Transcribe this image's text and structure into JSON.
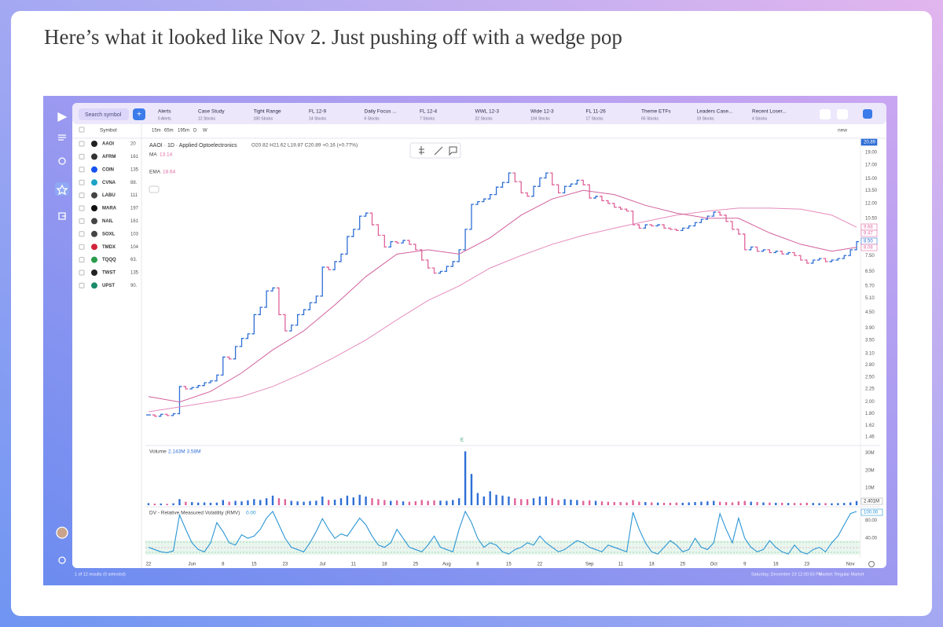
{
  "post": {
    "text": "Here’s what it looked like Nov 2. Just pushing off with a wedge pop"
  },
  "app": {
    "search": "Search symbol",
    "add": "+",
    "tabs": [
      {
        "title": "Alerts",
        "subtitle": "0 Alerts"
      },
      {
        "title": "Case Study",
        "subtitle": "12 Stocks"
      },
      {
        "title": "Tight Range",
        "subtitle": "180 Stocks"
      },
      {
        "title": "FL 12-9",
        "subtitle": "14 Stocks"
      },
      {
        "title": "Daily Focus ...",
        "subtitle": "6 Stocks"
      },
      {
        "title": "FL 12-4",
        "subtitle": "7 Stocks"
      },
      {
        "title": "WWL 12-3",
        "subtitle": "22 Stocks"
      },
      {
        "title": "Wide 12-3",
        "subtitle": "104 Stocks"
      },
      {
        "title": "FL 11-26",
        "subtitle": "17 Stocks"
      },
      {
        "title": "Theme ETFs",
        "subtitle": "65 Stocks"
      },
      {
        "title": "Leaders Case...",
        "subtitle": "19 Stocks"
      },
      {
        "title": "Recent Loser...",
        "subtitle": "4 Stocks"
      }
    ],
    "toolbar": [
      "15m",
      "65m",
      "195m",
      "D",
      "W"
    ],
    "layout_button": "new",
    "watchlist": {
      "header": "Symbol",
      "rows": [
        {
          "symbol": "AAOI",
          "price": "20"
        },
        {
          "symbol": "AFRM",
          "price": "161"
        },
        {
          "symbol": "COIN",
          "price": "135"
        },
        {
          "symbol": "CVNA",
          "price": "88."
        },
        {
          "symbol": "LABU",
          "price": "111"
        },
        {
          "symbol": "MARA",
          "price": "197"
        },
        {
          "symbol": "NAIL",
          "price": "161"
        },
        {
          "symbol": "SOXL",
          "price": "103"
        },
        {
          "symbol": "TMDX",
          "price": "104"
        },
        {
          "symbol": "TQQQ",
          "price": "63."
        },
        {
          "symbol": "TWST",
          "price": "135"
        },
        {
          "symbol": "UPST",
          "price": "90."
        }
      ]
    },
    "legend": {
      "title": "AAOI · 1D · Applied Optoelectronics",
      "ohlc": "O20.82 H21.62 L19.87 C20.89 +0.16 (+0.77%)",
      "ma_value": "13.14",
      "ema_value": "18.64"
    },
    "price_labels": [
      {
        "label": "20.89",
        "color": "#2f6fd6"
      },
      {
        "label": "9.68",
        "color": "#e06aa4"
      },
      {
        "label": "9.47",
        "color": "#e06aa4"
      },
      {
        "label": "8.50",
        "color": "#2f6fd6"
      },
      {
        "label": "8.08",
        "color": "#e06aa4"
      }
    ],
    "volume_legend": "Volume",
    "volume_values": "2.143M 3.58M",
    "volume_label": "2.401M",
    "rmv_legend": "DV - Relative Measured Volatility (RMV)",
    "rmv_value": "0.00",
    "rmv_label": "100.00",
    "earnings_marker": "E",
    "status": {
      "results": "1 of 12 results (0 selected)",
      "time": "Saturday, December 23 12:00:53 PM",
      "market": "Market: Regular Market"
    }
  },
  "chart_data": [
    {
      "type": "price",
      "log_scale": true,
      "xlim": [
        -0.5,
        114.5
      ],
      "ylim": [
        1.37,
        21.3
      ],
      "yticks": [
        {
          "value": 19,
          "label": "19.00"
        },
        {
          "value": 17,
          "label": "17.00"
        },
        {
          "value": 15,
          "label": "15.00"
        },
        {
          "value": 13.5,
          "label": "13.50"
        },
        {
          "value": 12,
          "label": "12.00"
        },
        {
          "value": 10.5,
          "label": "10.50"
        },
        {
          "value": 7.5,
          "label": "7.50"
        },
        {
          "value": 6.5,
          "label": "6.50"
        },
        {
          "value": 5.7,
          "label": "5.70"
        },
        {
          "value": 5.1,
          "label": "5.10"
        },
        {
          "value": 4.5,
          "label": "4.50"
        },
        {
          "value": 3.9,
          "label": "3.90"
        },
        {
          "value": 3.5,
          "label": "3.50"
        },
        {
          "value": 3.1,
          "label": "3.10"
        },
        {
          "value": 2.8,
          "label": "2.80"
        },
        {
          "value": 2.5,
          "label": "2.50"
        },
        {
          "value": 2.25,
          "label": "2.25"
        },
        {
          "value": 2,
          "label": "2.00"
        },
        {
          "value": 1.8,
          "label": "1.80"
        },
        {
          "value": 1.62,
          "label": "1.62"
        },
        {
          "value": 1.46,
          "label": "1.46"
        }
      ],
      "series": [
        {
          "color": "#2f6fd6",
          "down_color": "#e0649a",
          "values": [
            1.78,
            1.76,
            1.79,
            1.77,
            1.8,
            2.3,
            2.25,
            2.28,
            2.32,
            2.38,
            2.42,
            2.55,
            3.0,
            2.95,
            3.3,
            3.55,
            3.7,
            4.4,
            4.7,
            5.45,
            5.6,
            4.4,
            3.8,
            4.0,
            4.4,
            4.6,
            4.9,
            5.2,
            6.75,
            6.6,
            7.1,
            7.6,
            8.9,
            9.5,
            10.7,
            11.0,
            9.9,
            9.0,
            8.1,
            8.5,
            8.4,
            8.6,
            8.3,
            7.9,
            7.2,
            6.7,
            6.4,
            6.5,
            6.8,
            7.1,
            7.9,
            9.5,
            11.9,
            12.2,
            12.5,
            13.0,
            13.9,
            14.5,
            15.8,
            14.6,
            13.2,
            12.8,
            14.0,
            15.1,
            15.8,
            14.2,
            13.2,
            14.0,
            14.3,
            14.8,
            14.2,
            12.6,
            12.8,
            12.3,
            12.0,
            11.6,
            11.4,
            11.2,
            9.9,
            9.6,
            9.9,
            9.8,
            9.9,
            9.6,
            9.5,
            9.4,
            9.6,
            9.8,
            10.1,
            10.4,
            10.7,
            11.1,
            10.8,
            10.2,
            9.5,
            9.1,
            7.9,
            8.1,
            7.8,
            7.9,
            7.7,
            7.8,
            7.6,
            7.7,
            7.5,
            7.2,
            7.0,
            7.2,
            7.3,
            7.1,
            7.2,
            7.3,
            7.5,
            7.9,
            8.5
          ]
        },
        {
          "name": "MA",
          "color": "#e58bbd",
          "x": [
            0,
            10,
            15,
            20,
            25,
            30,
            35,
            40,
            45,
            50,
            55,
            60,
            65,
            70,
            75,
            80,
            85,
            90,
            95,
            100,
            105,
            110,
            114
          ],
          "values": [
            1.83,
            2.0,
            2.1,
            2.3,
            2.6,
            3.0,
            3.5,
            4.2,
            5.0,
            5.7,
            6.7,
            7.5,
            8.3,
            9.0,
            9.6,
            10.2,
            10.8,
            11.2,
            11.5,
            11.5,
            11.4,
            10.8,
            9.68
          ]
        },
        {
          "name": "EMA",
          "color": "#d2609c",
          "x": [
            0,
            5,
            10,
            15,
            20,
            25,
            30,
            35,
            40,
            45,
            50,
            55,
            60,
            65,
            70,
            75,
            80,
            85,
            90,
            95,
            100,
            105,
            110,
            114
          ],
          "values": [
            2.1,
            2.0,
            2.2,
            2.6,
            3.2,
            3.8,
            4.8,
            6.2,
            7.6,
            7.9,
            7.6,
            8.8,
            10.8,
            12.5,
            13.5,
            13.0,
            11.8,
            11.0,
            10.5,
            10.5,
            9.2,
            8.3,
            7.8,
            8.08
          ]
        }
      ]
    },
    {
      "type": "bar",
      "xlim": [
        -0.5,
        114.5
      ],
      "ylim": [
        0,
        33
      ],
      "yticks": [
        {
          "value": 10,
          "label": "10M"
        },
        {
          "value": 20,
          "label": "20M"
        },
        {
          "value": 30,
          "label": "30M"
        }
      ],
      "values": [
        1.2,
        0.9,
        1.0,
        0.8,
        1.1,
        3.5,
        2.0,
        1.8,
        1.5,
        1.6,
        1.4,
        1.5,
        3.0,
        2.0,
        2.5,
        2.2,
        2.8,
        3.5,
        3.0,
        4.0,
        5.5,
        4.0,
        3.5,
        2.5,
        2.2,
        2.0,
        2.4,
        2.6,
        5.0,
        3.0,
        3.2,
        4.0,
        5.5,
        4.5,
        6.0,
        5.0,
        4.0,
        3.5,
        3.0,
        2.5,
        2.8,
        2.2,
        2.0,
        2.3,
        3.0,
        2.5,
        2.8,
        2.6,
        2.5,
        3.0,
        4.0,
        31.0,
        18.0,
        7.0,
        5.0,
        8.0,
        6.0,
        5.5,
        5.0,
        4.0,
        3.5,
        3.5,
        4.0,
        5.0,
        5.0,
        4.0,
        3.0,
        3.5,
        3.2,
        3.0,
        2.5,
        2.8,
        2.5,
        2.2,
        2.0,
        1.8,
        1.8,
        1.6,
        3.0,
        2.0,
        1.8,
        1.6,
        1.5,
        1.4,
        1.4,
        1.5,
        1.4,
        1.6,
        1.8,
        2.0,
        2.2,
        2.5,
        2.0,
        1.8,
        1.6,
        2.2,
        2.5,
        2.0,
        1.8,
        1.6,
        1.5,
        1.4,
        1.4,
        1.3,
        1.3,
        1.2,
        1.4,
        1.3,
        1.2,
        1.2,
        1.1,
        1.2,
        1.3,
        1.6,
        2.4
      ]
    },
    {
      "type": "line",
      "color": "#2b95d4",
      "xlim": [
        -0.5,
        114.5
      ],
      "ylim": [
        0,
        105
      ],
      "yticks": [
        {
          "value": 40,
          "label": "40.00"
        },
        {
          "value": 80,
          "label": "80.00"
        }
      ],
      "xticks": [
        {
          "value": 0,
          "label": "22"
        },
        {
          "value": 7,
          "label": "Jun"
        },
        {
          "value": 12,
          "label": "8"
        },
        {
          "value": 17,
          "label": "15"
        },
        {
          "value": 22,
          "label": "23"
        },
        {
          "value": 28,
          "label": "Jul"
        },
        {
          "value": 33,
          "label": "11"
        },
        {
          "value": 38,
          "label": "18"
        },
        {
          "value": 43,
          "label": "25"
        },
        {
          "value": 48,
          "label": "Aug"
        },
        {
          "value": 53,
          "label": "8"
        },
        {
          "value": 58,
          "label": "15"
        },
        {
          "value": 63,
          "label": "22"
        },
        {
          "value": 71,
          "label": "Sep"
        },
        {
          "value": 76,
          "label": "11"
        },
        {
          "value": 81,
          "label": "18"
        },
        {
          "value": 86,
          "label": "25"
        },
        {
          "value": 91,
          "label": "Oct"
        },
        {
          "value": 96,
          "label": "9"
        },
        {
          "value": 101,
          "label": "16"
        },
        {
          "value": 106,
          "label": "23"
        },
        {
          "value": 113,
          "label": "Nov"
        }
      ],
      "values": [
        20,
        15,
        10,
        8,
        12,
        92,
        60,
        30,
        15,
        10,
        30,
        75,
        55,
        30,
        25,
        48,
        40,
        45,
        60,
        85,
        100,
        70,
        40,
        20,
        15,
        10,
        30,
        55,
        84,
        60,
        40,
        50,
        45,
        65,
        85,
        70,
        45,
        25,
        20,
        30,
        60,
        40,
        20,
        15,
        10,
        25,
        45,
        20,
        15,
        10,
        60,
        100,
        75,
        40,
        20,
        30,
        25,
        10,
        5,
        15,
        20,
        30,
        25,
        45,
        30,
        20,
        10,
        15,
        25,
        35,
        30,
        20,
        15,
        10,
        25,
        20,
        15,
        10,
        98,
        60,
        30,
        10,
        5,
        20,
        35,
        25,
        10,
        15,
        40,
        20,
        15,
        30,
        95,
        60,
        30,
        85,
        40,
        20,
        10,
        15,
        35,
        20,
        10,
        5,
        25,
        10,
        5,
        15,
        20,
        10,
        30,
        45,
        70,
        95,
        100
      ]
    }
  ]
}
